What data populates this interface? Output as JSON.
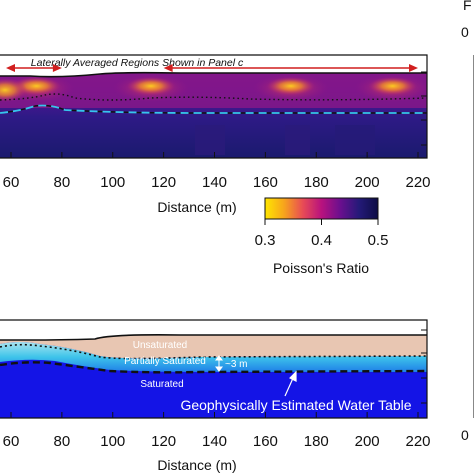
{
  "chart_data": [
    {
      "type": "heatmap",
      "panel": "upper",
      "xlabel": "Distance (m)",
      "x_ticks": [
        60,
        80,
        100,
        120,
        140,
        160,
        180,
        200,
        220
      ],
      "xlim": [
        53,
        220
      ],
      "annotation": "Laterally Averaged Regions Shown in Panel c",
      "annotation_arrows": [
        [
          55,
          80
        ],
        [
          120,
          220
        ]
      ],
      "colorbar": {
        "label": "Poisson's Ratio",
        "min": 0.3,
        "max": 0.5,
        "ticks": [
          "0.3",
          "0.4",
          "0.5"
        ],
        "colors": [
          "#ffe600",
          "#f7a51c",
          "#e84c55",
          "#b8127e",
          "#6a0f8e",
          "#241a78",
          "#0d0d45"
        ]
      },
      "bright_zones_x": [
        70,
        115,
        170,
        210
      ],
      "dotted_line_depth_fraction": 0.42,
      "water_table_depth_fraction": 0.55
    },
    {
      "type": "area",
      "panel": "lower",
      "xlabel": "Distance (m)",
      "x_ticks": [
        60,
        80,
        100,
        120,
        140,
        160,
        180,
        200,
        220
      ],
      "xlim": [
        53,
        220
      ],
      "zones": [
        {
          "name": "Unsaturated",
          "color": "#e8c6b2"
        },
        {
          "name": "Partially Saturated",
          "color": "#3fc0e6"
        },
        {
          "name": "Saturated",
          "color": "#1414e6"
        }
      ],
      "thickness_label": "~3 m",
      "water_table_label": "Geophysically Estimated Water Table"
    }
  ],
  "labels": {
    "edge_letter": "F",
    "edge_numbers": [
      "0",
      "0"
    ]
  }
}
